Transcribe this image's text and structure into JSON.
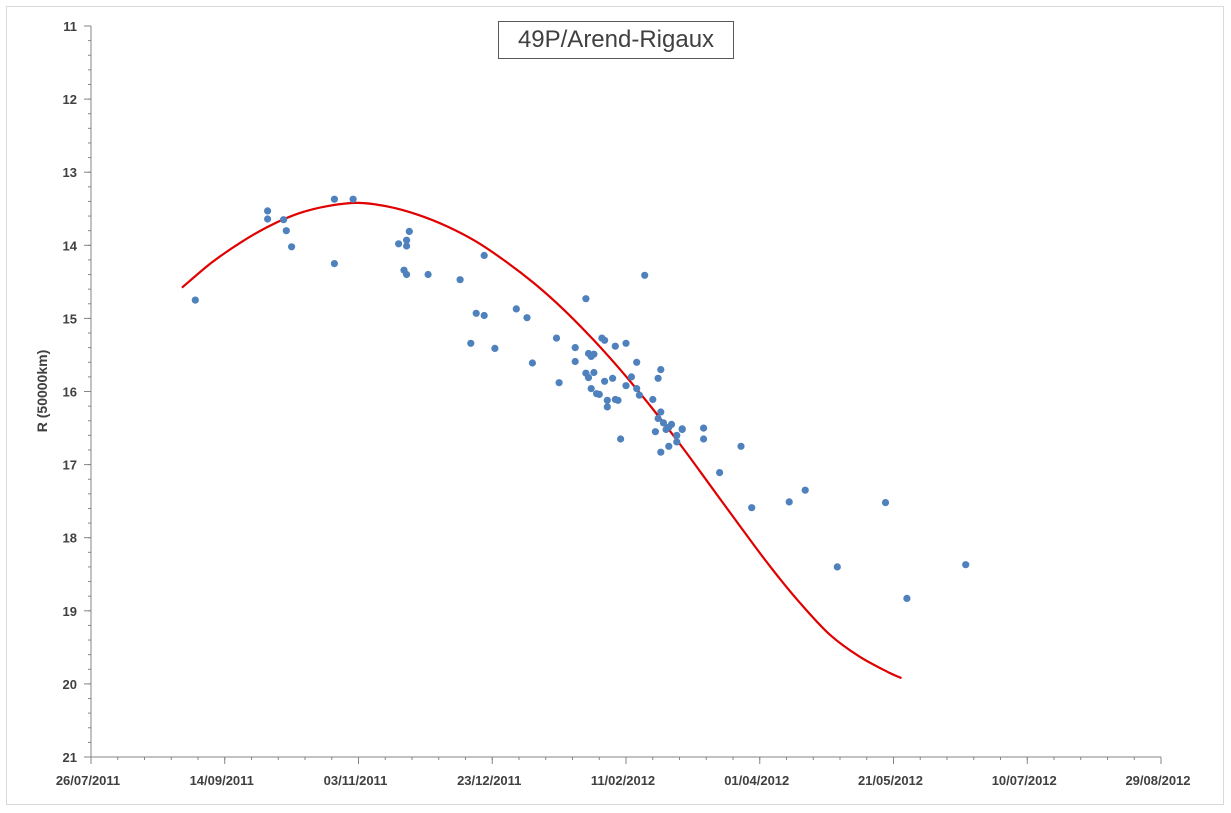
{
  "chart_data": {
    "type": "scatter",
    "title": "49P/Arend-Rigaux",
    "xlabel": "",
    "ylabel": "R (50000km)",
    "x_axis_type": "date",
    "xlim": [
      "2011-07-26",
      "2012-08-29"
    ],
    "x_tick_labels": [
      "26/07/2011",
      "14/09/2011",
      "03/11/2011",
      "23/12/2011",
      "11/02/2012",
      "01/04/2012",
      "21/05/2012",
      "10/07/2012",
      "29/08/2012"
    ],
    "x_ticks": [
      "2011-07-26",
      "2011-09-14",
      "2011-11-03",
      "2011-12-23",
      "2012-02-11",
      "2012-04-01",
      "2012-05-21",
      "2012-07-10",
      "2012-08-29"
    ],
    "ylim": [
      11,
      21
    ],
    "y_inverted": true,
    "y_tick_labels": [
      "11",
      "12",
      "13",
      "14",
      "15",
      "16",
      "17",
      "18",
      "19",
      "20",
      "21"
    ],
    "y_ticks": [
      11,
      12,
      13,
      14,
      15,
      16,
      17,
      18,
      19,
      20,
      21
    ],
    "grid": false,
    "colors": {
      "points": "#4f81bd",
      "fit_line": "#e00000",
      "axis": "#868686",
      "text": "#404040"
    },
    "series": [
      {
        "type": "scatter",
        "points": [
          {
            "x": "2011-09-03",
            "y": 14.75
          },
          {
            "x": "2011-09-30",
            "y": 13.53
          },
          {
            "x": "2011-09-30",
            "y": 13.64
          },
          {
            "x": "2011-10-06",
            "y": 13.65
          },
          {
            "x": "2011-10-07",
            "y": 13.8
          },
          {
            "x": "2011-10-09",
            "y": 14.02
          },
          {
            "x": "2011-10-25",
            "y": 13.37
          },
          {
            "x": "2011-10-25",
            "y": 14.25
          },
          {
            "x": "2011-11-01",
            "y": 13.37
          },
          {
            "x": "2011-11-18",
            "y": 13.98
          },
          {
            "x": "2011-11-20",
            "y": 14.34
          },
          {
            "x": "2011-11-21",
            "y": 13.93
          },
          {
            "x": "2011-11-21",
            "y": 14.4
          },
          {
            "x": "2011-11-21",
            "y": 14.01
          },
          {
            "x": "2011-11-22",
            "y": 13.81
          },
          {
            "x": "2011-11-29",
            "y": 14.4
          },
          {
            "x": "2011-12-11",
            "y": 14.47
          },
          {
            "x": "2011-12-15",
            "y": 15.34
          },
          {
            "x": "2011-12-17",
            "y": 14.93
          },
          {
            "x": "2011-12-20",
            "y": 14.96
          },
          {
            "x": "2011-12-20",
            "y": 14.14
          },
          {
            "x": "2011-12-24",
            "y": 15.41
          },
          {
            "x": "2012-01-01",
            "y": 14.87
          },
          {
            "x": "2012-01-05",
            "y": 14.99
          },
          {
            "x": "2012-01-07",
            "y": 15.61
          },
          {
            "x": "2012-01-16",
            "y": 15.27
          },
          {
            "x": "2012-01-17",
            "y": 15.88
          },
          {
            "x": "2012-01-23",
            "y": 15.4
          },
          {
            "x": "2012-01-23",
            "y": 15.59
          },
          {
            "x": "2012-01-27",
            "y": 14.73
          },
          {
            "x": "2012-01-27",
            "y": 15.75
          },
          {
            "x": "2012-01-28",
            "y": 15.48
          },
          {
            "x": "2012-01-28",
            "y": 15.81
          },
          {
            "x": "2012-01-29",
            "y": 15.52
          },
          {
            "x": "2012-01-29",
            "y": 15.96
          },
          {
            "x": "2012-01-30",
            "y": 15.74
          },
          {
            "x": "2012-01-30",
            "y": 15.49
          },
          {
            "x": "2012-01-31",
            "y": 16.03
          },
          {
            "x": "2012-02-01",
            "y": 16.04
          },
          {
            "x": "2012-02-02",
            "y": 15.27
          },
          {
            "x": "2012-02-03",
            "y": 15.3
          },
          {
            "x": "2012-02-03",
            "y": 15.86
          },
          {
            "x": "2012-02-04",
            "y": 16.21
          },
          {
            "x": "2012-02-04",
            "y": 16.12
          },
          {
            "x": "2012-02-06",
            "y": 15.82
          },
          {
            "x": "2012-02-07",
            "y": 15.38
          },
          {
            "x": "2012-02-07",
            "y": 16.11
          },
          {
            "x": "2012-02-08",
            "y": 16.12
          },
          {
            "x": "2012-02-09",
            "y": 16.65
          },
          {
            "x": "2012-02-11",
            "y": 15.34
          },
          {
            "x": "2012-02-11",
            "y": 15.92
          },
          {
            "x": "2012-02-13",
            "y": 15.8
          },
          {
            "x": "2012-02-15",
            "y": 15.6
          },
          {
            "x": "2012-02-15",
            "y": 15.96
          },
          {
            "x": "2012-02-16",
            "y": 16.05
          },
          {
            "x": "2012-02-18",
            "y": 14.41
          },
          {
            "x": "2012-02-21",
            "y": 16.11
          },
          {
            "x": "2012-02-22",
            "y": 16.55
          },
          {
            "x": "2012-02-23",
            "y": 15.82
          },
          {
            "x": "2012-02-23",
            "y": 16.37
          },
          {
            "x": "2012-02-24",
            "y": 16.28
          },
          {
            "x": "2012-02-24",
            "y": 15.7
          },
          {
            "x": "2012-02-24",
            "y": 16.83
          },
          {
            "x": "2012-02-25",
            "y": 16.43
          },
          {
            "x": "2012-02-26",
            "y": 16.52
          },
          {
            "x": "2012-02-27",
            "y": 16.75
          },
          {
            "x": "2012-02-27",
            "y": 16.49
          },
          {
            "x": "2012-02-28",
            "y": 16.45
          },
          {
            "x": "2012-03-01",
            "y": 16.6
          },
          {
            "x": "2012-03-01",
            "y": 16.69
          },
          {
            "x": "2012-03-03",
            "y": 16.52
          },
          {
            "x": "2012-03-03",
            "y": 16.51
          },
          {
            "x": "2012-03-11",
            "y": 16.5
          },
          {
            "x": "2012-03-11",
            "y": 16.65
          },
          {
            "x": "2012-03-17",
            "y": 17.11
          },
          {
            "x": "2012-03-25",
            "y": 16.75
          },
          {
            "x": "2012-03-29",
            "y": 17.59
          },
          {
            "x": "2012-04-12",
            "y": 17.51
          },
          {
            "x": "2012-04-18",
            "y": 17.35
          },
          {
            "x": "2012-04-30",
            "y": 18.4
          },
          {
            "x": "2012-05-18",
            "y": 17.52
          },
          {
            "x": "2012-05-26",
            "y": 18.83
          },
          {
            "x": "2012-06-17",
            "y": 18.37
          }
        ]
      },
      {
        "type": "line",
        "fit": true,
        "points": [
          {
            "x": "2011-08-29",
            "y": 14.58
          },
          {
            "x": "2011-09-09",
            "y": 14.24
          },
          {
            "x": "2011-09-20",
            "y": 13.96
          },
          {
            "x": "2011-10-01",
            "y": 13.73
          },
          {
            "x": "2011-10-12",
            "y": 13.56
          },
          {
            "x": "2011-10-23",
            "y": 13.46
          },
          {
            "x": "2011-11-03",
            "y": 13.42
          },
          {
            "x": "2011-11-14",
            "y": 13.47
          },
          {
            "x": "2011-11-25",
            "y": 13.58
          },
          {
            "x": "2011-12-06",
            "y": 13.74
          },
          {
            "x": "2011-12-17",
            "y": 13.95
          },
          {
            "x": "2011-12-28",
            "y": 14.22
          },
          {
            "x": "2012-01-08",
            "y": 14.53
          },
          {
            "x": "2012-01-19",
            "y": 14.89
          },
          {
            "x": "2012-01-30",
            "y": 15.3
          },
          {
            "x": "2012-02-10",
            "y": 15.75
          },
          {
            "x": "2012-02-21",
            "y": 16.24
          },
          {
            "x": "2012-03-03",
            "y": 16.76
          },
          {
            "x": "2012-03-14",
            "y": 17.31
          },
          {
            "x": "2012-03-25",
            "y": 17.86
          },
          {
            "x": "2012-04-05",
            "y": 18.4
          },
          {
            "x": "2012-04-16",
            "y": 18.89
          },
          {
            "x": "2012-04-27",
            "y": 19.32
          },
          {
            "x": "2012-05-08",
            "y": 19.62
          },
          {
            "x": "2012-05-19",
            "y": 19.84
          },
          {
            "x": "2012-05-24",
            "y": 19.92
          }
        ]
      }
    ]
  }
}
